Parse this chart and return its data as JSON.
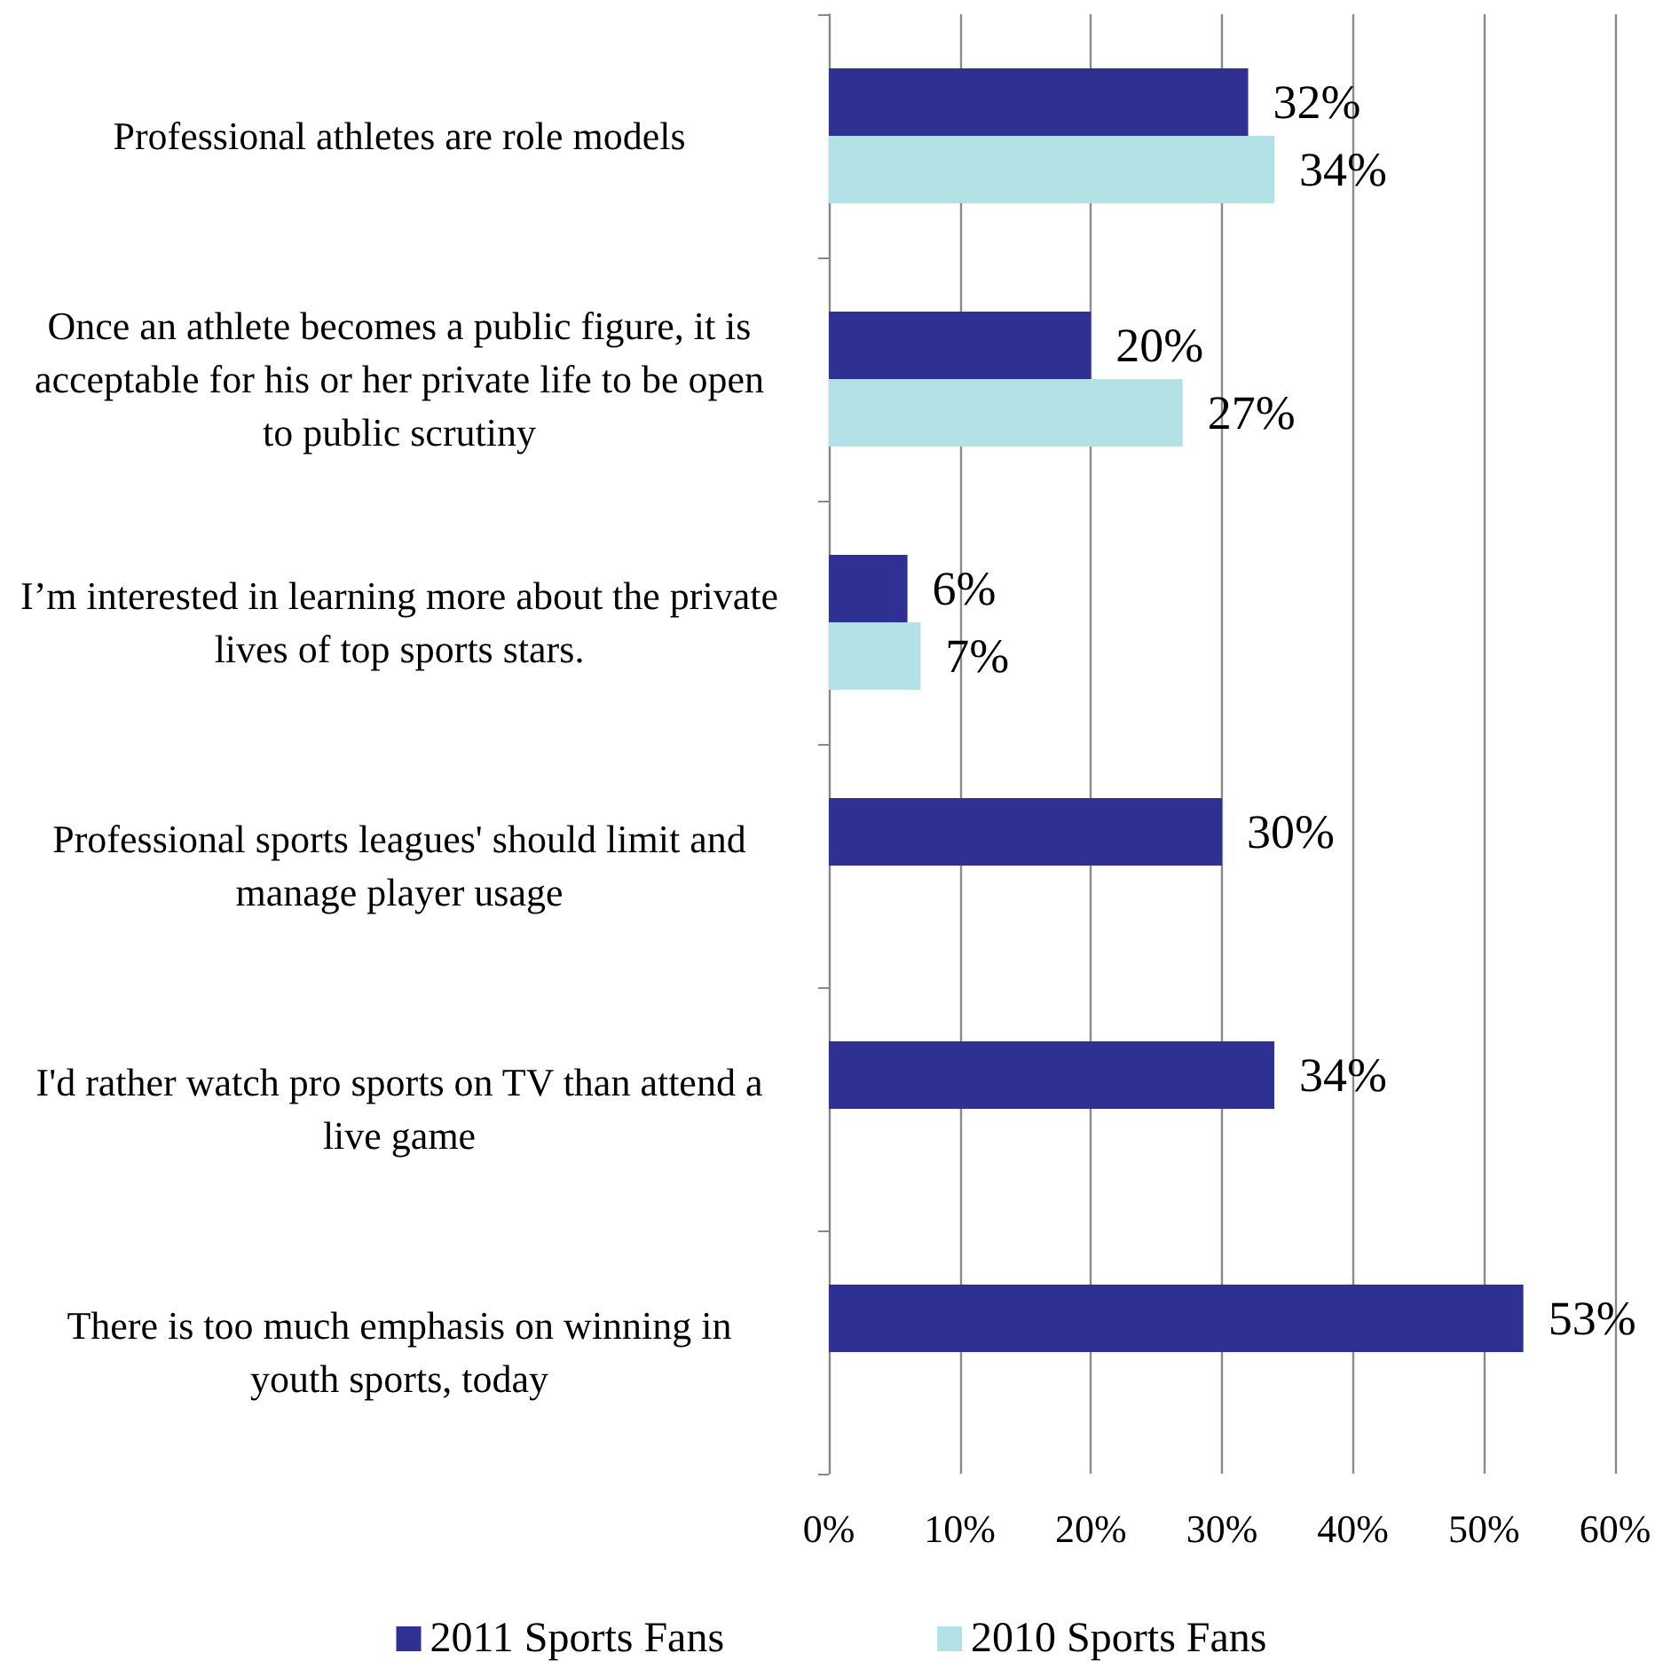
{
  "chart_data": {
    "type": "bar",
    "orientation": "horizontal",
    "categories": [
      "Professional athletes are role models",
      "Once an athlete becomes a public figure, it is acceptable for his or her private life to be open to public scrutiny",
      "I’m interested in learning more about the private lives of top sports stars.",
      "Professional sports leagues' should limit and manage player usage",
      "I'd rather watch pro sports on TV than attend a live game",
      "There is too much emphasis on winning in youth sports, today"
    ],
    "series": [
      {
        "name": "2011 Sports Fans",
        "color": "#2e3192",
        "values": [
          32,
          20,
          6,
          30,
          34,
          53
        ],
        "value_labels": [
          "32%",
          "20%",
          "6%",
          "30%",
          "34%",
          "53%"
        ]
      },
      {
        "name": "2010 Sports Fans",
        "color": "#b2e2e6",
        "values": [
          34,
          27,
          7,
          null,
          null,
          null
        ],
        "value_labels": [
          "34%",
          "27%",
          "7%",
          null,
          null,
          null
        ]
      }
    ],
    "xlim": [
      0,
      60
    ],
    "xticks": [
      {
        "value": 0,
        "label": "0%"
      },
      {
        "value": 10,
        "label": "10%"
      },
      {
        "value": 20,
        "label": "20%"
      },
      {
        "value": 30,
        "label": "30%"
      },
      {
        "value": 40,
        "label": "40%"
      },
      {
        "value": 50,
        "label": "50%"
      },
      {
        "value": 60,
        "label": "60%"
      }
    ],
    "grid": "x",
    "legend": "bottom"
  }
}
